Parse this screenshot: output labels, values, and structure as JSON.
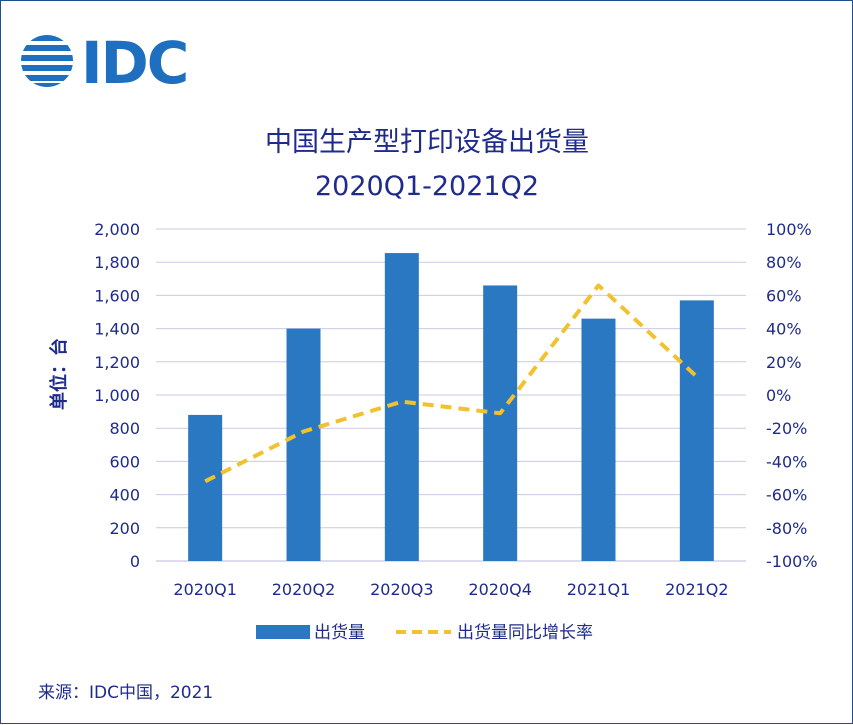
{
  "logo": {
    "text": "IDC",
    "color": "#1f6fc0"
  },
  "chart_data": {
    "type": "bar",
    "title": "中国生产型打印设备出货量",
    "subtitle": "2020Q1-2021Q2",
    "ylabel": "单位：台",
    "categories": [
      "2020Q1",
      "2020Q2",
      "2020Q3",
      "2020Q4",
      "2021Q1",
      "2021Q2"
    ],
    "ylim": [
      0,
      2000
    ],
    "y2lim": [
      -100,
      100
    ],
    "yticks": [
      "0",
      "200",
      "400",
      "600",
      "800",
      "1,000",
      "1,200",
      "1,400",
      "1,600",
      "1,800",
      "2,000"
    ],
    "y2ticks": [
      "-100%",
      "-80%",
      "-60%",
      "-40%",
      "-20%",
      "0%",
      "20%",
      "40%",
      "60%",
      "80%",
      "100%"
    ],
    "grid": true,
    "legend_position": "bottom",
    "series": [
      {
        "name": "出货量",
        "type": "bar",
        "axis": "left",
        "color": "#2a78c2",
        "values": [
          880,
          1400,
          1855,
          1660,
          1460,
          1570
        ]
      },
      {
        "name": "出货量同比增长率",
        "type": "line",
        "axis": "right",
        "style": "dashed",
        "color": "#f2c12e",
        "values": [
          -52,
          -22,
          -4,
          -11,
          66,
          11
        ]
      }
    ]
  },
  "footer": {
    "source": "来源：IDC中国，2021"
  }
}
